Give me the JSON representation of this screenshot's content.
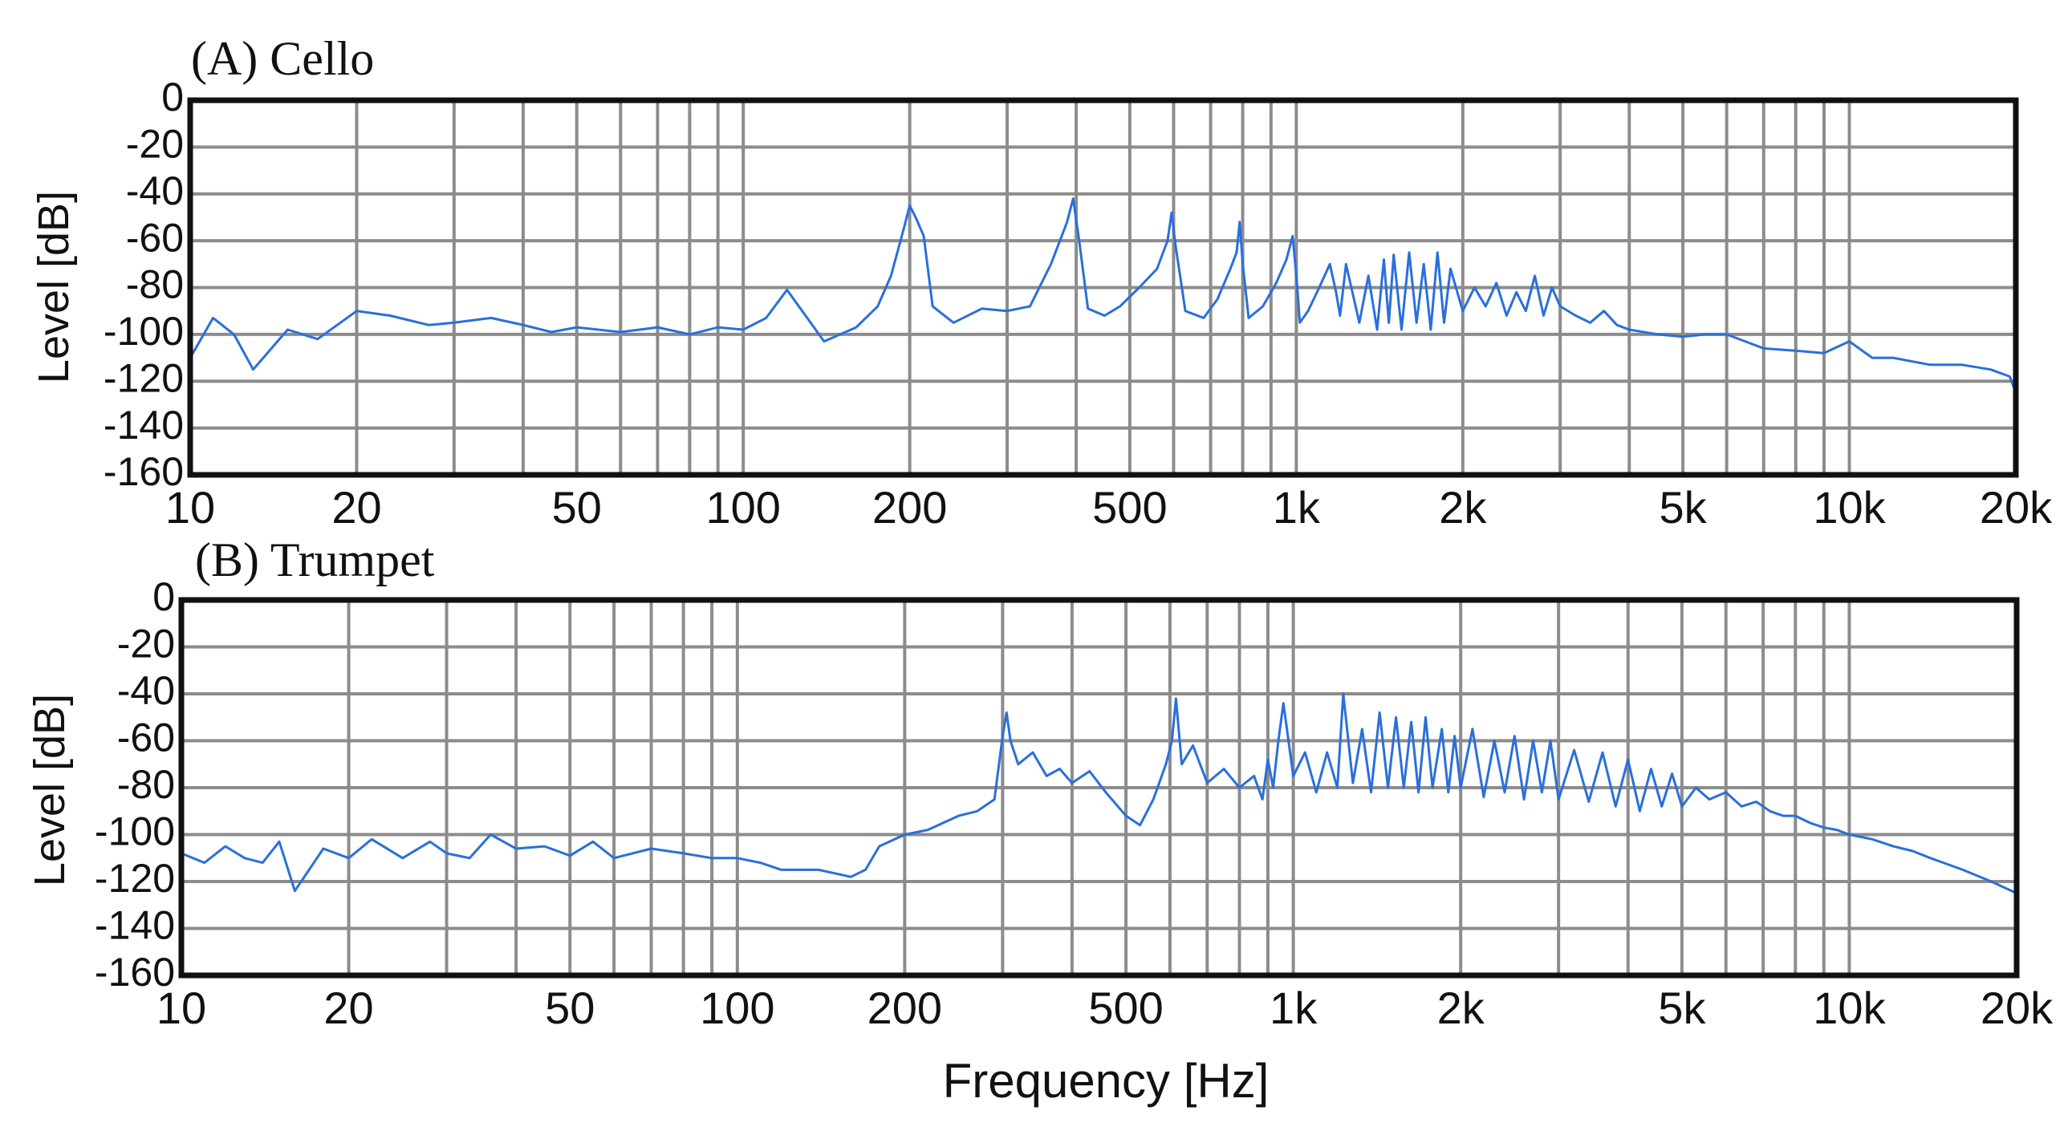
{
  "chart_data": [
    {
      "type": "line",
      "title": "(A) Cello",
      "ylabel": "Level [dB]",
      "xlabel": "",
      "xscale": "log",
      "xlim": [
        10,
        20000
      ],
      "ylim": [
        -160,
        0
      ],
      "xticks": [
        10,
        20,
        50,
        100,
        200,
        500,
        1000,
        2000,
        5000,
        10000,
        20000
      ],
      "xtick_labels": [
        "10",
        "20",
        "50",
        "100",
        "200",
        "500",
        "1k",
        "2k",
        "5k",
        "10k",
        "20k"
      ],
      "yticks": [
        0,
        -20,
        -40,
        -60,
        -80,
        -100,
        -120,
        -140,
        -160
      ],
      "ytick_labels": [
        "0",
        "-20",
        "-40",
        "-60",
        "-80",
        "-100",
        "-120",
        "-140",
        "-160"
      ],
      "grid": true,
      "color": "#2a6fdb",
      "series": [
        {
          "x": [
            10,
            11,
            12,
            13,
            15,
            17,
            20,
            23,
            27,
            30,
            35,
            40,
            45,
            50,
            60,
            70,
            80,
            90,
            100,
            110,
            120,
            140,
            160,
            175,
            185,
            195,
            200,
            205,
            212,
            220,
            240,
            270,
            300,
            330,
            360,
            385,
            395,
            405,
            420,
            450,
            480,
            520,
            560,
            585,
            595,
            605,
            630,
            680,
            720,
            760,
            780,
            790,
            800,
            820,
            870,
            920,
            960,
            985,
            1000,
            1015,
            1050,
            1100,
            1150,
            1180,
            1200,
            1230,
            1300,
            1350,
            1400,
            1440,
            1470,
            1500,
            1550,
            1600,
            1650,
            1700,
            1750,
            1800,
            1850,
            1900,
            2000,
            2100,
            2200,
            2300,
            2400,
            2500,
            2600,
            2700,
            2800,
            2900,
            3000,
            3200,
            3400,
            3600,
            3800,
            4000,
            4500,
            5000,
            5500,
            6000,
            7000,
            8000,
            9000,
            10000,
            11000,
            12000,
            14000,
            16000,
            18000,
            19500,
            20000
          ],
          "y": [
            -110,
            -93,
            -100,
            -115,
            -98,
            -102,
            -90,
            -92,
            -96,
            -95,
            -93,
            -96,
            -99,
            -97,
            -99,
            -97,
            -100,
            -97,
            -98,
            -93,
            -81,
            -103,
            -97,
            -88,
            -75,
            -55,
            -45,
            -50,
            -58,
            -88,
            -95,
            -89,
            -90,
            -88,
            -70,
            -52,
            -42,
            -60,
            -89,
            -92,
            -88,
            -80,
            -72,
            -60,
            -48,
            -62,
            -90,
            -93,
            -85,
            -72,
            -65,
            -52,
            -70,
            -93,
            -88,
            -78,
            -68,
            -58,
            -75,
            -95,
            -90,
            -80,
            -70,
            -82,
            -92,
            -70,
            -95,
            -75,
            -98,
            -68,
            -95,
            -66,
            -98,
            -65,
            -95,
            -70,
            -98,
            -65,
            -95,
            -72,
            -90,
            -80,
            -88,
            -78,
            -92,
            -82,
            -90,
            -75,
            -92,
            -80,
            -88,
            -92,
            -95,
            -90,
            -96,
            -98,
            -100,
            -101,
            -100,
            -100,
            -106,
            -107,
            -108,
            -103,
            -110,
            -110,
            -113,
            -113,
            -115,
            -118,
            -125
          ]
        }
      ]
    },
    {
      "type": "line",
      "title": "(B) Trumpet",
      "ylabel": "Level [dB]",
      "xlabel": "Frequency [Hz]",
      "xscale": "log",
      "xlim": [
        10,
        20000
      ],
      "ylim": [
        -160,
        0
      ],
      "xticks": [
        10,
        20,
        50,
        100,
        200,
        500,
        1000,
        2000,
        5000,
        10000,
        20000
      ],
      "xtick_labels": [
        "10",
        "20",
        "50",
        "100",
        "200",
        "500",
        "1k",
        "2k",
        "5k",
        "10k",
        "20k"
      ],
      "yticks": [
        0,
        -20,
        -40,
        -60,
        -80,
        -100,
        -120,
        -140,
        -160
      ],
      "ytick_labels": [
        "0",
        "-20",
        "-40",
        "-60",
        "-80",
        "-100",
        "-120",
        "-140",
        "-160"
      ],
      "grid": true,
      "color": "#2a6fdb",
      "series": [
        {
          "x": [
            10,
            11,
            12,
            13,
            14,
            15,
            16,
            18,
            20,
            22,
            25,
            28,
            30,
            33,
            36,
            40,
            45,
            50,
            55,
            60,
            70,
            80,
            90,
            100,
            110,
            120,
            140,
            160,
            170,
            180,
            200,
            220,
            250,
            270,
            290,
            300,
            305,
            310,
            320,
            340,
            360,
            380,
            400,
            430,
            460,
            500,
            530,
            560,
            590,
            605,
            615,
            630,
            660,
            700,
            750,
            800,
            850,
            880,
            900,
            920,
            940,
            960,
            1000,
            1050,
            1100,
            1150,
            1200,
            1230,
            1280,
            1330,
            1380,
            1430,
            1480,
            1530,
            1580,
            1630,
            1680,
            1730,
            1780,
            1850,
            1900,
            1950,
            2000,
            2100,
            2200,
            2300,
            2400,
            2500,
            2600,
            2700,
            2800,
            2900,
            3000,
            3200,
            3400,
            3600,
            3800,
            4000,
            4200,
            4400,
            4600,
            4800,
            5000,
            5300,
            5600,
            6000,
            6400,
            6800,
            7200,
            7600,
            8000,
            8500,
            9000,
            9500,
            10000,
            11000,
            12000,
            13000,
            14000,
            16000,
            18000,
            20000
          ],
          "y": [
            -108,
            -112,
            -105,
            -110,
            -112,
            -103,
            -124,
            -106,
            -110,
            -102,
            -110,
            -103,
            -108,
            -110,
            -100,
            -106,
            -105,
            -109,
            -103,
            -110,
            -106,
            -108,
            -110,
            -110,
            -112,
            -115,
            -115,
            -118,
            -115,
            -105,
            -100,
            -98,
            -92,
            -90,
            -85,
            -58,
            -48,
            -60,
            -70,
            -65,
            -75,
            -72,
            -78,
            -73,
            -82,
            -92,
            -96,
            -85,
            -70,
            -60,
            -42,
            -70,
            -62,
            -78,
            -72,
            -80,
            -75,
            -85,
            -68,
            -80,
            -60,
            -44,
            -75,
            -65,
            -82,
            -65,
            -80,
            -40,
            -78,
            -55,
            -82,
            -48,
            -80,
            -50,
            -80,
            -52,
            -82,
            -50,
            -80,
            -55,
            -82,
            -58,
            -80,
            -55,
            -84,
            -60,
            -82,
            -58,
            -85,
            -60,
            -82,
            -60,
            -85,
            -64,
            -86,
            -65,
            -88,
            -68,
            -90,
            -72,
            -88,
            -74,
            -88,
            -80,
            -85,
            -82,
            -88,
            -86,
            -90,
            -92,
            -92,
            -95,
            -97,
            -98,
            -100,
            -102,
            -105,
            -107,
            -110,
            -115,
            -120,
            -125
          ]
        }
      ]
    }
  ]
}
